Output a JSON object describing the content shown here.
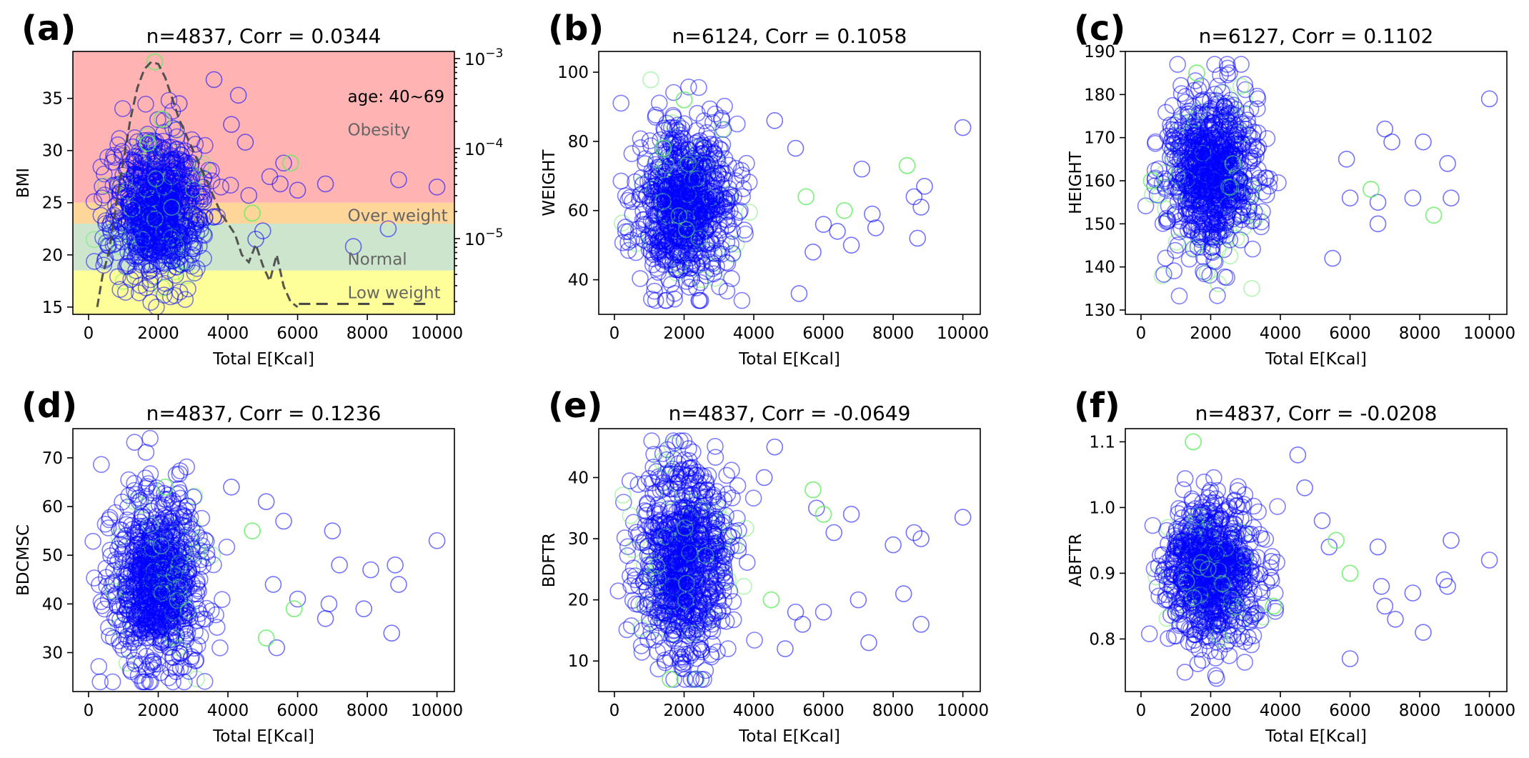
{
  "chart_data": [
    {
      "panel": "(a)",
      "type": "scatter",
      "title": "n=4837, Corr = 0.0344",
      "xlabel": "Total E[Kcal]",
      "ylabel": "BMI",
      "xlim": [
        -450,
        10500
      ],
      "ylim": [
        14.3,
        39.5
      ],
      "xticks": [
        0,
        2000,
        4000,
        6000,
        8000,
        10000
      ],
      "yticks": [
        15,
        20,
        25,
        30,
        35
      ],
      "x_cloud": {
        "center": 2000,
        "sd": 650
      },
      "y_cloud": {
        "center": 24.5,
        "sd": 3.3,
        "min": 15,
        "max": 38
      },
      "outliers": [
        [
          2600,
          34.5
        ],
        [
          3600,
          36.8
        ],
        [
          4300,
          35.3
        ],
        [
          4100,
          32.5
        ],
        [
          4500,
          30.8
        ],
        [
          5200,
          27.5
        ],
        [
          5500,
          26.8
        ],
        [
          6000,
          26.2
        ],
        [
          6800,
          26.8
        ],
        [
          7600,
          20.8
        ],
        [
          8600,
          22.5
        ],
        [
          8900,
          27.2
        ],
        [
          10000,
          26.5
        ],
        [
          4800,
          21.5
        ],
        [
          5000,
          22.3
        ],
        [
          5600,
          28.8
        ],
        [
          3800,
          26.5
        ],
        [
          4600,
          25.7
        ]
      ],
      "green_points": [
        [
          1900,
          38.5
        ],
        [
          5800,
          28.8
        ],
        [
          4700,
          24.0
        ],
        [
          2100,
          33.0
        ],
        [
          1700,
          30.7
        ]
      ],
      "right_axis": {
        "scale": "log",
        "ticks": [
          "10^{-3}",
          "10^{-4}",
          "10^{-5}"
        ]
      },
      "density_curve": [
        [
          250,
          15
        ],
        [
          400,
          18
        ],
        [
          600,
          20.5
        ],
        [
          800,
          25
        ],
        [
          1000,
          29
        ],
        [
          1200,
          33
        ],
        [
          1400,
          36
        ],
        [
          1600,
          37.8
        ],
        [
          1800,
          38.5
        ],
        [
          2000,
          38.3
        ],
        [
          2200,
          37
        ],
        [
          2400,
          35
        ],
        [
          2600,
          33
        ],
        [
          2800,
          31.5
        ],
        [
          3000,
          30
        ],
        [
          3200,
          28.5
        ],
        [
          3400,
          27
        ],
        [
          3600,
          25.5
        ],
        [
          3800,
          24
        ],
        [
          4000,
          23
        ],
        [
          4200,
          22
        ],
        [
          4400,
          20
        ],
        [
          4600,
          19.3
        ],
        [
          4800,
          21
        ],
        [
          5000,
          19
        ],
        [
          5200,
          17.5
        ],
        [
          5400,
          20
        ],
        [
          5600,
          17
        ],
        [
          5800,
          15.5
        ],
        [
          6000,
          15
        ]
      ],
      "bands": [
        {
          "label": "Obesity",
          "from": 25,
          "to": 39.5,
          "color": "#ffb3b3"
        },
        {
          "label": "Over weight",
          "from": 23,
          "to": 25,
          "color": "#ffd699"
        },
        {
          "label": "Normal",
          "from": 18.5,
          "to": 23,
          "color": "#cce5cc"
        },
        {
          "label": "Low weight",
          "from": 14.3,
          "to": 18.5,
          "color": "#ffff99"
        }
      ],
      "annotation": "age: 40~69"
    },
    {
      "panel": "(b)",
      "type": "scatter",
      "title": "n=6124, Corr = 0.1058",
      "xlabel": "Total E[Kcal]",
      "ylabel": "WEIGHT",
      "xlim": [
        -450,
        10500
      ],
      "ylim": [
        30,
        106
      ],
      "xticks": [
        0,
        2000,
        4000,
        6000,
        8000,
        10000
      ],
      "yticks": [
        40,
        60,
        80,
        100
      ],
      "x_cloud": {
        "center": 2000,
        "sd": 650
      },
      "y_cloud": {
        "center": 62,
        "sd": 11,
        "min": 34,
        "max": 103
      },
      "outliers": [
        [
          4600,
          86
        ],
        [
          5200,
          78
        ],
        [
          5300,
          36
        ],
        [
          5700,
          48
        ],
        [
          6000,
          56
        ],
        [
          6400,
          54
        ],
        [
          6800,
          50
        ],
        [
          7100,
          72
        ],
        [
          7400,
          59
        ],
        [
          7500,
          55
        ],
        [
          8600,
          64
        ],
        [
          8800,
          61
        ],
        [
          8900,
          67
        ],
        [
          10000,
          84
        ],
        [
          8700,
          52
        ]
      ],
      "green_points": [
        [
          8400,
          73
        ],
        [
          6600,
          60
        ],
        [
          5500,
          64
        ],
        [
          2000,
          92
        ],
        [
          1400,
          78
        ]
      ]
    },
    {
      "panel": "(c)",
      "type": "scatter",
      "title": "n=6127, Corr = 0.1102",
      "xlabel": "Total E[Kcal]",
      "ylabel": "HEIGHT",
      "xlim": [
        -450,
        10500
      ],
      "ylim": [
        129,
        190
      ],
      "xticks": [
        0,
        2000,
        4000,
        6000,
        8000,
        10000
      ],
      "yticks": [
        130,
        140,
        150,
        160,
        170,
        180,
        190
      ],
      "x_cloud": {
        "center": 2000,
        "sd": 650
      },
      "y_cloud": {
        "center": 162,
        "sd": 9,
        "min": 132,
        "max": 187
      },
      "outliers": [
        [
          5500,
          142
        ],
        [
          5900,
          165
        ],
        [
          6000,
          156
        ],
        [
          6800,
          155
        ],
        [
          7000,
          172
        ],
        [
          7200,
          169
        ],
        [
          8100,
          169
        ],
        [
          8800,
          164
        ],
        [
          8900,
          156
        ],
        [
          10000,
          179
        ],
        [
          6800,
          150
        ],
        [
          7800,
          156
        ]
      ],
      "green_points": [
        [
          8400,
          152
        ],
        [
          6600,
          158
        ],
        [
          1600,
          185
        ],
        [
          300,
          160
        ]
      ]
    },
    {
      "panel": "(d)",
      "type": "scatter",
      "title": "n=4837, Corr = 0.1236",
      "xlabel": "Total E[Kcal]",
      "ylabel": "BDCMSC",
      "xlim": [
        -450,
        10500
      ],
      "ylim": [
        22,
        76
      ],
      "xticks": [
        0,
        2000,
        4000,
        6000,
        8000,
        10000
      ],
      "yticks": [
        30,
        40,
        50,
        60,
        70
      ],
      "x_cloud": {
        "center": 2000,
        "sd": 650
      },
      "y_cloud": {
        "center": 45,
        "sd": 9,
        "min": 24,
        "max": 74
      },
      "outliers": [
        [
          4100,
          64
        ],
        [
          5100,
          61
        ],
        [
          5600,
          57
        ],
        [
          5300,
          44
        ],
        [
          6000,
          41
        ],
        [
          6800,
          37
        ],
        [
          6900,
          40
        ],
        [
          7000,
          55
        ],
        [
          7200,
          48
        ],
        [
          7900,
          39
        ],
        [
          8100,
          47
        ],
        [
          8700,
          34
        ],
        [
          8800,
          48
        ],
        [
          8900,
          44
        ],
        [
          10000,
          53
        ],
        [
          5400,
          31
        ]
      ],
      "green_points": [
        [
          4700,
          55
        ],
        [
          5100,
          33
        ],
        [
          5900,
          39
        ],
        [
          2200,
          64
        ]
      ]
    },
    {
      "panel": "(e)",
      "type": "scatter",
      "title": "n=4837, Corr = -0.0649",
      "xlabel": "Total E[Kcal]",
      "ylabel": "BDFTR",
      "xlim": [
        -450,
        10500
      ],
      "ylim": [
        5,
        48
      ],
      "xticks": [
        0,
        2000,
        4000,
        6000,
        8000,
        10000
      ],
      "yticks": [
        10,
        20,
        30,
        40
      ],
      "x_cloud": {
        "center": 2000,
        "sd": 650
      },
      "y_cloud": {
        "center": 26,
        "sd": 8,
        "min": 7,
        "max": 46
      },
      "outliers": [
        [
          4600,
          45
        ],
        [
          4300,
          40
        ],
        [
          5200,
          18
        ],
        [
          5800,
          35
        ],
        [
          6000,
          18
        ],
        [
          6300,
          31
        ],
        [
          6800,
          34
        ],
        [
          7000,
          20
        ],
        [
          7300,
          13
        ],
        [
          8000,
          29
        ],
        [
          8600,
          31
        ],
        [
          8800,
          30
        ],
        [
          8300,
          21
        ],
        [
          8800,
          16
        ],
        [
          10000,
          33.5
        ],
        [
          5400,
          16
        ],
        [
          4900,
          12
        ]
      ],
      "green_points": [
        [
          5700,
          38
        ],
        [
          6000,
          34
        ],
        [
          1600,
          7
        ],
        [
          4500,
          20
        ]
      ]
    },
    {
      "panel": "(f)",
      "type": "scatter",
      "title": "n=4837, Corr = -0.0208",
      "xlabel": "Total E[Kcal]",
      "ylabel": "ABFTR",
      "xlim": [
        -450,
        10500
      ],
      "ylim": [
        0.72,
        1.12
      ],
      "xticks": [
        0,
        2000,
        4000,
        6000,
        8000,
        10000
      ],
      "yticks": [
        0.8,
        0.9,
        1.0,
        1.1
      ],
      "x_cloud": {
        "center": 2000,
        "sd": 650
      },
      "y_cloud": {
        "center": 0.9,
        "sd": 0.05,
        "min": 0.74,
        "max": 1.1
      },
      "outliers": [
        [
          4500,
          1.08
        ],
        [
          4700,
          1.03
        ],
        [
          5200,
          0.98
        ],
        [
          5400,
          0.94
        ],
        [
          6000,
          0.77
        ],
        [
          6800,
          0.94
        ],
        [
          6900,
          0.88
        ],
        [
          7000,
          0.85
        ],
        [
          7300,
          0.83
        ],
        [
          7800,
          0.87
        ],
        [
          8100,
          0.81
        ],
        [
          8800,
          0.88
        ],
        [
          8900,
          0.95
        ],
        [
          10000,
          0.92
        ],
        [
          8700,
          0.89
        ]
      ],
      "green_points": [
        [
          1500,
          1.1
        ],
        [
          5600,
          0.95
        ],
        [
          6000,
          0.9
        ],
        [
          3800,
          0.85
        ]
      ]
    }
  ],
  "colors": {
    "blue": "#0000ff",
    "green": "#66ee66",
    "density": "#444444"
  }
}
